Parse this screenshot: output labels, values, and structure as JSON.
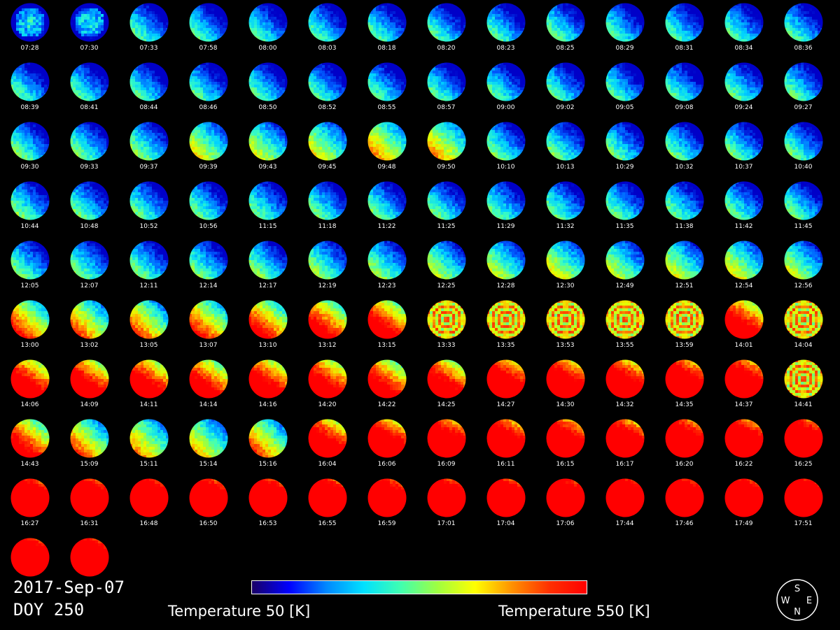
{
  "date": "2017-Sep-07",
  "doy": "DOY 250",
  "colorbar": {
    "min_label": "Temperature 50 [K]",
    "max_label": "Temperature 550 [K]",
    "colors": [
      "#1a0066",
      "#0000ff",
      "#0088ff",
      "#00e0ff",
      "#40ffb0",
      "#a0ff40",
      "#ffff00",
      "#ff9000",
      "#ff3000",
      "#ff0000"
    ]
  },
  "compass": {
    "top": "S",
    "left": "W",
    "right": "E",
    "bottom": "N"
  },
  "frames": [
    {
      "time": "07:28",
      "hot": 0.05,
      "style": "cold"
    },
    {
      "time": "07:30",
      "hot": 0.05,
      "style": "cold"
    },
    {
      "time": "07:33",
      "hot": 0.05,
      "style": "flat"
    },
    {
      "time": "07:58",
      "hot": 0.05,
      "style": "flat"
    },
    {
      "time": "08:00",
      "hot": 0.05,
      "style": "flat"
    },
    {
      "time": "08:03",
      "hot": 0.05,
      "style": "flat"
    },
    {
      "time": "08:18",
      "hot": 0.05,
      "style": "flat"
    },
    {
      "time": "08:20",
      "hot": 0.05,
      "style": "flat"
    },
    {
      "time": "08:23",
      "hot": 0.05,
      "style": "flat"
    },
    {
      "time": "08:25",
      "hot": 0.08,
      "style": "flat"
    },
    {
      "time": "08:29",
      "hot": 0.05,
      "style": "flat"
    },
    {
      "time": "08:31",
      "hot": 0.05,
      "style": "flat"
    },
    {
      "time": "08:34",
      "hot": 0.05,
      "style": "flat"
    },
    {
      "time": "08:36",
      "hot": 0.05,
      "style": "flat"
    },
    {
      "time": "08:39",
      "hot": 0.05,
      "style": "flat"
    },
    {
      "time": "08:41",
      "hot": 0.05,
      "style": "flat"
    },
    {
      "time": "08:44",
      "hot": 0.05,
      "style": "flat"
    },
    {
      "time": "08:46",
      "hot": 0.05,
      "style": "flat"
    },
    {
      "time": "08:50",
      "hot": 0.05,
      "style": "flat"
    },
    {
      "time": "08:52",
      "hot": 0.05,
      "style": "flat"
    },
    {
      "time": "08:55",
      "hot": 0.05,
      "style": "flat"
    },
    {
      "time": "08:57",
      "hot": 0.05,
      "style": "flat"
    },
    {
      "time": "09:00",
      "hot": 0.05,
      "style": "flat"
    },
    {
      "time": "09:02",
      "hot": 0.05,
      "style": "flat"
    },
    {
      "time": "09:05",
      "hot": 0.05,
      "style": "flat"
    },
    {
      "time": "09:08",
      "hot": 0.05,
      "style": "flat"
    },
    {
      "time": "09:24",
      "hot": 0.08,
      "style": "flat"
    },
    {
      "time": "09:27",
      "hot": 0.08,
      "style": "flat"
    },
    {
      "time": "09:30",
      "hot": 0.1,
      "style": "flat"
    },
    {
      "time": "09:33",
      "hot": 0.1,
      "style": "flat"
    },
    {
      "time": "09:37",
      "hot": 0.12,
      "style": "flat"
    },
    {
      "time": "09:39",
      "hot": 0.25,
      "style": "flat"
    },
    {
      "time": "09:43",
      "hot": 0.22,
      "style": "flat"
    },
    {
      "time": "09:45",
      "hot": 0.25,
      "style": "flat"
    },
    {
      "time": "09:48",
      "hot": 0.35,
      "style": "flat"
    },
    {
      "time": "09:50",
      "hot": 0.35,
      "style": "flat"
    },
    {
      "time": "10:10",
      "hot": 0.1,
      "style": "flat"
    },
    {
      "time": "10:13",
      "hot": 0.1,
      "style": "flat"
    },
    {
      "time": "10:29",
      "hot": 0.08,
      "style": "flat"
    },
    {
      "time": "10:32",
      "hot": 0.08,
      "style": "flat"
    },
    {
      "time": "10:37",
      "hot": 0.08,
      "style": "flat"
    },
    {
      "time": "10:40",
      "hot": 0.08,
      "style": "flat"
    },
    {
      "time": "10:44",
      "hot": 0.1,
      "style": "flat"
    },
    {
      "time": "10:48",
      "hot": 0.08,
      "style": "flat"
    },
    {
      "time": "10:52",
      "hot": 0.08,
      "style": "flat"
    },
    {
      "time": "10:56",
      "hot": 0.08,
      "style": "flat"
    },
    {
      "time": "11:15",
      "hot": 0.08,
      "style": "flat"
    },
    {
      "time": "11:18",
      "hot": 0.08,
      "style": "flat"
    },
    {
      "time": "11:22",
      "hot": 0.08,
      "style": "flat"
    },
    {
      "time": "11:25",
      "hot": 0.08,
      "style": "flat"
    },
    {
      "time": "11:29",
      "hot": 0.08,
      "style": "flat"
    },
    {
      "time": "11:32",
      "hot": 0.08,
      "style": "flat"
    },
    {
      "time": "11:35",
      "hot": 0.08,
      "style": "flat"
    },
    {
      "time": "11:38",
      "hot": 0.08,
      "style": "flat"
    },
    {
      "time": "11:42",
      "hot": 0.08,
      "style": "flat"
    },
    {
      "time": "11:45",
      "hot": 0.08,
      "style": "flat"
    },
    {
      "time": "12:05",
      "hot": 0.1,
      "style": "flat"
    },
    {
      "time": "12:07",
      "hot": 0.1,
      "style": "flat"
    },
    {
      "time": "12:11",
      "hot": 0.1,
      "style": "flat"
    },
    {
      "time": "12:14",
      "hot": 0.1,
      "style": "flat"
    },
    {
      "time": "12:17",
      "hot": 0.12,
      "style": "flat"
    },
    {
      "time": "12:19",
      "hot": 0.15,
      "style": "flat"
    },
    {
      "time": "12:23",
      "hot": 0.15,
      "style": "flat"
    },
    {
      "time": "12:25",
      "hot": 0.18,
      "style": "flat"
    },
    {
      "time": "12:28",
      "hot": 0.2,
      "style": "flat"
    },
    {
      "time": "12:30",
      "hot": 0.25,
      "style": "flat"
    },
    {
      "time": "12:49",
      "hot": 0.2,
      "style": "flat"
    },
    {
      "time": "12:51",
      "hot": 0.22,
      "style": "flat"
    },
    {
      "time": "12:54",
      "hot": 0.25,
      "style": "flat"
    },
    {
      "time": "12:56",
      "hot": 0.2,
      "style": "flat"
    },
    {
      "time": "13:00",
      "hot": 0.45,
      "style": "flat"
    },
    {
      "time": "13:02",
      "hot": 0.4,
      "style": "flat"
    },
    {
      "time": "13:05",
      "hot": 0.4,
      "style": "flat"
    },
    {
      "time": "13:07",
      "hot": 0.45,
      "style": "flat"
    },
    {
      "time": "13:10",
      "hot": 0.5,
      "style": "flat"
    },
    {
      "time": "13:12",
      "hot": 0.55,
      "style": "flat"
    },
    {
      "time": "13:15",
      "hot": 0.6,
      "style": "flat"
    },
    {
      "time": "13:33",
      "hot": 0.6,
      "style": "rings"
    },
    {
      "time": "13:35",
      "hot": 0.6,
      "style": "rings"
    },
    {
      "time": "13:53",
      "hot": 0.6,
      "style": "rings"
    },
    {
      "time": "13:55",
      "hot": 0.6,
      "style": "rings"
    },
    {
      "time": "13:59",
      "hot": 0.55,
      "style": "rings"
    },
    {
      "time": "14:01",
      "hot": 0.65,
      "style": "flat"
    },
    {
      "time": "14:04",
      "hot": 0.65,
      "style": "rings"
    },
    {
      "time": "14:06",
      "hot": 0.65,
      "style": "flat"
    },
    {
      "time": "14:09",
      "hot": 0.65,
      "style": "flat"
    },
    {
      "time": "14:11",
      "hot": 0.65,
      "style": "flat"
    },
    {
      "time": "14:14",
      "hot": 0.6,
      "style": "flat"
    },
    {
      "time": "14:16",
      "hot": 0.65,
      "style": "flat"
    },
    {
      "time": "14:20",
      "hot": 0.65,
      "style": "flat"
    },
    {
      "time": "14:22",
      "hot": 0.6,
      "style": "flat"
    },
    {
      "time": "14:25",
      "hot": 0.65,
      "style": "flat"
    },
    {
      "time": "14:27",
      "hot": 0.75,
      "style": "flat"
    },
    {
      "time": "14:30",
      "hot": 0.75,
      "style": "flat"
    },
    {
      "time": "14:32",
      "hot": 0.75,
      "style": "flat"
    },
    {
      "time": "14:35",
      "hot": 0.8,
      "style": "flat"
    },
    {
      "time": "14:37",
      "hot": 0.8,
      "style": "flat"
    },
    {
      "time": "14:41",
      "hot": 0.8,
      "style": "rings"
    },
    {
      "time": "14:43",
      "hot": 0.55,
      "style": "flat"
    },
    {
      "time": "15:09",
      "hot": 0.4,
      "style": "flat"
    },
    {
      "time": "15:11",
      "hot": 0.35,
      "style": "flat"
    },
    {
      "time": "15:14",
      "hot": 0.3,
      "style": "flat"
    },
    {
      "time": "15:16",
      "hot": 0.4,
      "style": "flat"
    },
    {
      "time": "16:04",
      "hot": 0.7,
      "style": "flat"
    },
    {
      "time": "16:06",
      "hot": 0.75,
      "style": "flat"
    },
    {
      "time": "16:09",
      "hot": 0.8,
      "style": "flat"
    },
    {
      "time": "16:11",
      "hot": 0.8,
      "style": "flat"
    },
    {
      "time": "16:15",
      "hot": 0.8,
      "style": "flat"
    },
    {
      "time": "16:17",
      "hot": 0.8,
      "style": "flat"
    },
    {
      "time": "16:20",
      "hot": 0.85,
      "style": "flat"
    },
    {
      "time": "16:22",
      "hot": 0.85,
      "style": "flat"
    },
    {
      "time": "16:25",
      "hot": 0.88,
      "style": "flat"
    },
    {
      "time": "16:27",
      "hot": 0.92,
      "style": "flat"
    },
    {
      "time": "16:31",
      "hot": 0.92,
      "style": "flat"
    },
    {
      "time": "16:48",
      "hot": 0.95,
      "style": "flat"
    },
    {
      "time": "16:50",
      "hot": 0.92,
      "style": "flat"
    },
    {
      "time": "16:53",
      "hot": 0.92,
      "style": "flat"
    },
    {
      "time": "16:55",
      "hot": 0.92,
      "style": "flat"
    },
    {
      "time": "16:59",
      "hot": 0.92,
      "style": "flat"
    },
    {
      "time": "17:01",
      "hot": 0.92,
      "style": "flat"
    },
    {
      "time": "17:04",
      "hot": 0.92,
      "style": "flat"
    },
    {
      "time": "17:06",
      "hot": 0.95,
      "style": "flat"
    },
    {
      "time": "17:44",
      "hot": 0.98,
      "style": "flat"
    },
    {
      "time": "17:46",
      "hot": 0.95,
      "style": "flat"
    },
    {
      "time": "17:49",
      "hot": 0.95,
      "style": "flat"
    },
    {
      "time": "17:51",
      "hot": 0.98,
      "style": "flat"
    },
    {
      "time": "",
      "hot": 0.95,
      "style": "flat"
    },
    {
      "time": "",
      "hot": 0.93,
      "style": "flat"
    }
  ]
}
